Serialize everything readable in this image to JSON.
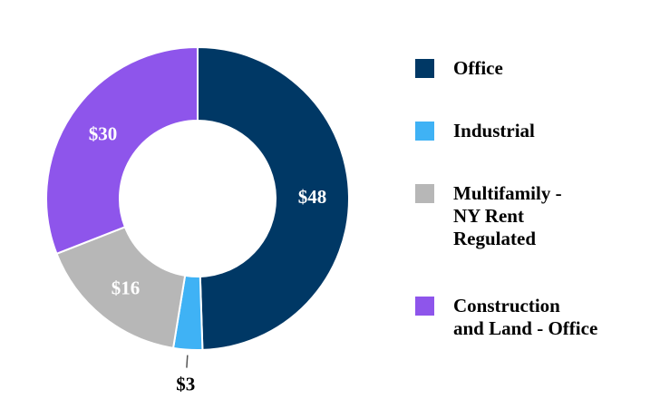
{
  "chart_data": {
    "type": "pie",
    "donut": true,
    "title": "",
    "legend_position": "right",
    "slices": [
      {
        "label": "Office",
        "value": 48,
        "value_label": "$48",
        "color": "#003865"
      },
      {
        "label": "Industrial",
        "value": 3,
        "value_label": "$3",
        "color": "#3FB2F5"
      },
      {
        "label": "Multifamily - NY Rent Regulated",
        "value": 16,
        "value_label": "$16",
        "color": "#B7B7B7"
      },
      {
        "label": "Construction and Land - Office",
        "value": 30,
        "value_label": "$30",
        "color": "#8E55EB"
      }
    ]
  },
  "legend": {
    "items": [
      {
        "label": "Office",
        "color": "#003865"
      },
      {
        "label": "Industrial",
        "color": "#3FB2F5"
      },
      {
        "label": "Multifamily -\nNY Rent\nRegulated",
        "color": "#B7B7B7"
      },
      {
        "label": "Construction\nand Land - Office",
        "color": "#8E55EB"
      }
    ]
  }
}
